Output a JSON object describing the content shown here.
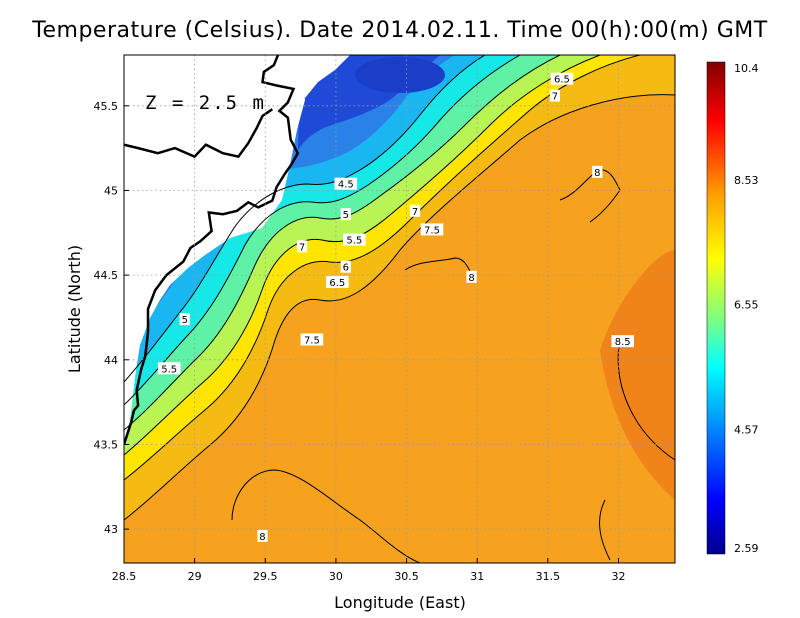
{
  "chart_data": {
    "type": "heatmap",
    "title": "Temperature (Celsius). Date 2014.02.11. Time 00(h):00(m) GMT",
    "xlabel": "Longitude (East)",
    "ylabel": "Latitude (North)",
    "depth_label": "Z = 2.5 m",
    "xlim": [
      28.5,
      32.4
    ],
    "ylim": [
      42.8,
      45.8
    ],
    "x_ticks": [
      {
        "value": 28.5,
        "label": "28.5"
      },
      {
        "value": 29,
        "label": "29"
      },
      {
        "value": 29.5,
        "label": "29.5"
      },
      {
        "value": 30,
        "label": "30"
      },
      {
        "value": 30.5,
        "label": "30.5"
      },
      {
        "value": 31,
        "label": "31"
      },
      {
        "value": 31.5,
        "label": "31.5"
      },
      {
        "value": 32,
        "label": "32"
      }
    ],
    "y_ticks": [
      {
        "value": 43,
        "label": "43"
      },
      {
        "value": 43.5,
        "label": "43.5"
      },
      {
        "value": 44,
        "label": "44"
      },
      {
        "value": 44.5,
        "label": "44.5"
      },
      {
        "value": 45,
        "label": "45"
      },
      {
        "value": 45.5,
        "label": "45.5"
      }
    ],
    "grid": true,
    "colorbar": {
      "min": 2.59,
      "max": 10.4,
      "labels": [
        "10.4",
        "8.53",
        "6.55",
        "4.57",
        "2.59"
      ],
      "label_values": [
        10.4,
        8.53,
        6.55,
        4.57,
        2.59
      ],
      "colors": [
        "#00008f",
        "#0000ff",
        "#00a0ff",
        "#00ffff",
        "#80ff80",
        "#ffff00",
        "#ff9f00",
        "#ff0000",
        "#800000"
      ]
    },
    "contour_levels": [
      4.5,
      5,
      5.5,
      6,
      6.5,
      7,
      7.5,
      8,
      8.5
    ],
    "contour_labels": [
      {
        "text": "6.5",
        "lon": 31.6,
        "lat": 45.66
      },
      {
        "text": "7",
        "lon": 31.55,
        "lat": 45.56
      },
      {
        "text": "8",
        "lon": 31.85,
        "lat": 45.11
      },
      {
        "text": "4.5",
        "lon": 30.07,
        "lat": 45.04
      },
      {
        "text": "5",
        "lon": 30.07,
        "lat": 44.86
      },
      {
        "text": "7",
        "lon": 30.56,
        "lat": 44.88
      },
      {
        "text": "7.5",
        "lon": 30.68,
        "lat": 44.77
      },
      {
        "text": "5.5",
        "lon": 30.13,
        "lat": 44.71
      },
      {
        "text": "7",
        "lon": 29.76,
        "lat": 44.67
      },
      {
        "text": "6",
        "lon": 30.07,
        "lat": 44.55
      },
      {
        "text": "6.5",
        "lon": 30.01,
        "lat": 44.46
      },
      {
        "text": "8",
        "lon": 30.96,
        "lat": 44.49
      },
      {
        "text": "5",
        "lon": 28.93,
        "lat": 44.24
      },
      {
        "text": "7.5",
        "lon": 29.83,
        "lat": 44.12
      },
      {
        "text": "8.5",
        "lon": 32.03,
        "lat": 44.11
      },
      {
        "text": "5.5",
        "lon": 28.82,
        "lat": 43.95
      },
      {
        "text": "8",
        "lon": 29.48,
        "lat": 42.96
      }
    ],
    "coastline": [
      [
        29.59,
        45.8
      ],
      [
        29.56,
        45.74
      ],
      [
        29.49,
        45.7
      ],
      [
        29.48,
        45.64
      ],
      [
        29.58,
        45.62
      ],
      [
        29.7,
        45.6
      ],
      [
        29.66,
        45.52
      ],
      [
        29.6,
        45.47
      ],
      [
        29.66,
        45.43
      ],
      [
        29.68,
        45.3
      ],
      [
        29.73,
        45.22
      ],
      [
        29.69,
        45.16
      ],
      [
        29.64,
        45.1
      ],
      [
        29.58,
        45.02
      ],
      [
        29.55,
        44.94
      ],
      [
        29.45,
        44.9
      ],
      [
        29.38,
        44.93
      ],
      [
        29.3,
        44.88
      ],
      [
        29.2,
        44.86
      ],
      [
        29.1,
        44.87
      ],
      [
        29.12,
        44.76
      ],
      [
        29.04,
        44.7
      ],
      [
        28.97,
        44.66
      ],
      [
        28.92,
        44.58
      ],
      [
        28.8,
        44.5
      ],
      [
        28.72,
        44.41
      ],
      [
        28.67,
        44.3
      ],
      [
        28.67,
        44.16
      ],
      [
        28.65,
        44.02
      ],
      [
        28.62,
        43.94
      ],
      [
        28.59,
        43.82
      ],
      [
        28.6,
        43.73
      ],
      [
        28.57,
        43.7
      ],
      [
        28.55,
        43.63
      ],
      [
        28.5,
        43.5
      ]
    ],
    "coastline_north": [
      [
        28.5,
        45.27
      ],
      [
        28.6,
        45.25
      ],
      [
        28.74,
        45.22
      ],
      [
        28.86,
        45.25
      ],
      [
        29.0,
        45.2
      ],
      [
        29.08,
        45.27
      ],
      [
        29.2,
        45.22
      ],
      [
        29.31,
        45.2
      ],
      [
        29.38,
        45.28
      ],
      [
        29.44,
        45.37
      ],
      [
        29.48,
        45.44
      ],
      [
        29.55,
        45.48
      ]
    ]
  }
}
